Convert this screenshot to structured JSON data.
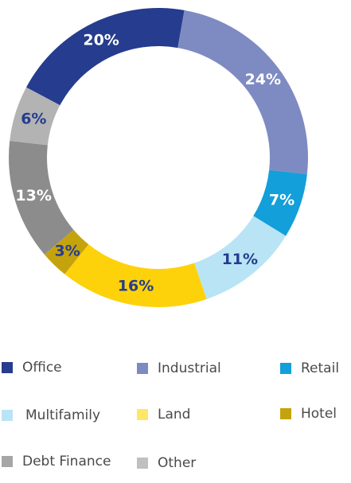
{
  "chart_data": {
    "type": "pie",
    "style": "donut",
    "categories": [
      "Office",
      "Industrial",
      "Retail",
      "Multifamily",
      "Land",
      "Hotel",
      "Debt Finance",
      "Other"
    ],
    "values": [
      20,
      24,
      7,
      11,
      16,
      3,
      13,
      6
    ],
    "labels": [
      "20%",
      "24%",
      "7%",
      "11%",
      "16%",
      "3%",
      "13%",
      "6%"
    ],
    "colors": [
      "#253c8f",
      "#7e8bc2",
      "#139fd9",
      "#b9e4f5",
      "#fdd20a",
      "#c5a30d",
      "#8c8c8c",
      "#b3b3b3"
    ],
    "label_colors": [
      "#ffffff",
      "#ffffff",
      "#ffffff",
      "#253c8f",
      "#253c8f",
      "#253c8f",
      "#ffffff",
      "#253c8f"
    ],
    "legend_colors": [
      "#253c8f",
      "#7e8bc2",
      "#139fd9",
      "#b9e4f5",
      "#fee766",
      "#c5a30d",
      "#a6a6a6",
      "#c0c0c0"
    ],
    "legend_placement": "bottom"
  }
}
